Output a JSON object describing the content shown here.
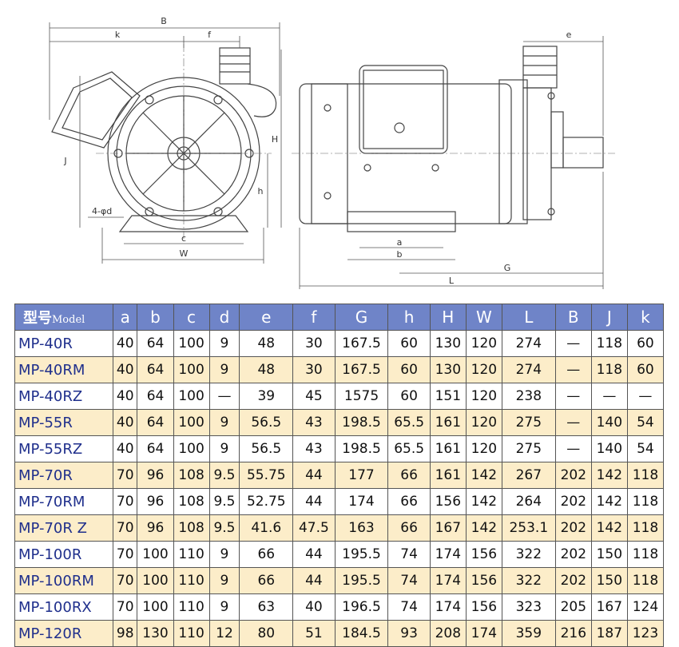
{
  "drawing": {
    "labels": {
      "B": "B",
      "k": "k",
      "f": "f",
      "e": "e",
      "H": "H",
      "J": "J",
      "h": "h",
      "d": "4-φd",
      "c": "c",
      "W": "W",
      "a": "a",
      "b": "b",
      "G": "G",
      "L": "L"
    }
  },
  "table": {
    "header": {
      "model_cn": "型号",
      "model_en": "Model",
      "columns": [
        "a",
        "b",
        "c",
        "d",
        "e",
        "f",
        "G",
        "h",
        "H",
        "W",
        "L",
        "B",
        "J",
        "k"
      ]
    },
    "rows": [
      [
        "MP-40R",
        "40",
        "64",
        "100",
        "9",
        "48",
        "30",
        "167.5",
        "60",
        "130",
        "120",
        "274",
        "—",
        "118",
        "60"
      ],
      [
        "MP-40RM",
        "40",
        "64",
        "100",
        "9",
        "48",
        "30",
        "167.5",
        "60",
        "130",
        "120",
        "274",
        "—",
        "118",
        "60"
      ],
      [
        "MP-40RZ",
        "40",
        "64",
        "100",
        "—",
        "39",
        "45",
        "1575",
        "60",
        "151",
        "120",
        "238",
        "—",
        "—",
        "—"
      ],
      [
        "MP-55R",
        "40",
        "64",
        "100",
        "9",
        "56.5",
        "43",
        "198.5",
        "65.5",
        "161",
        "120",
        "275",
        "—",
        "140",
        "54"
      ],
      [
        "MP-55RZ",
        "40",
        "64",
        "100",
        "9",
        "56.5",
        "43",
        "198.5",
        "65.5",
        "161",
        "120",
        "275",
        "—",
        "140",
        "54"
      ],
      [
        "MP-70R",
        "70",
        "96",
        "108",
        "9.5",
        "55.75",
        "44",
        "177",
        "66",
        "161",
        "142",
        "267",
        "202",
        "142",
        "118"
      ],
      [
        "MP-70RM",
        "70",
        "96",
        "108",
        "9.5",
        "52.75",
        "44",
        "174",
        "66",
        "156",
        "142",
        "264",
        "202",
        "142",
        "118"
      ],
      [
        "MP-70R Z",
        "70",
        "96",
        "108",
        "9.5",
        "41.6",
        "47.5",
        "163",
        "66",
        "167",
        "142",
        "253.1",
        "202",
        "142",
        "118"
      ],
      [
        "MP-100R",
        "70",
        "100",
        "110",
        "9",
        "66",
        "44",
        "195.5",
        "74",
        "174",
        "156",
        "322",
        "202",
        "150",
        "118"
      ],
      [
        "MP-100RM",
        "70",
        "100",
        "110",
        "9",
        "66",
        "44",
        "195.5",
        "74",
        "174",
        "156",
        "322",
        "202",
        "150",
        "118"
      ],
      [
        "MP-100RX",
        "70",
        "100",
        "110",
        "9",
        "63",
        "40",
        "196.5",
        "74",
        "174",
        "156",
        "323",
        "205",
        "167",
        "124"
      ],
      [
        "MP-120R",
        "98",
        "130",
        "110",
        "12",
        "80",
        "51",
        "184.5",
        "93",
        "208",
        "174",
        "359",
        "216",
        "187",
        "123"
      ]
    ]
  }
}
